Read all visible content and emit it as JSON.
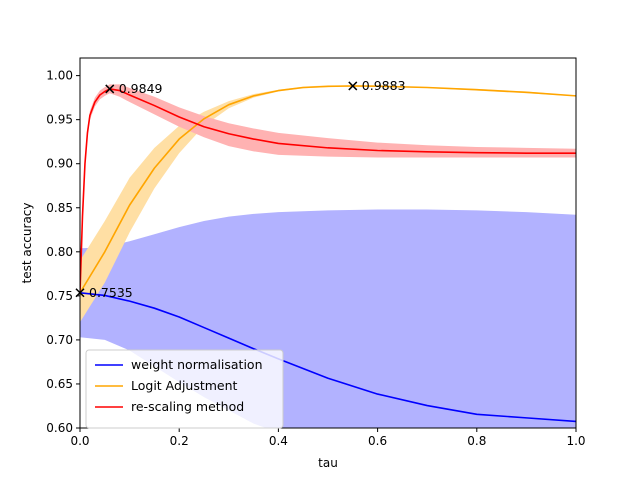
{
  "chart_data": {
    "type": "line",
    "title": "",
    "xlabel": "tau",
    "ylabel": "test accuracy",
    "xlim": [
      0,
      1
    ],
    "ylim": [
      0.6,
      1.02
    ],
    "grid": false,
    "legend_position": "lower-left",
    "x_ticks": [
      "0.0",
      "0.2",
      "0.4",
      "0.6",
      "0.8",
      "1.0"
    ],
    "y_ticks": [
      "0.60",
      "0.65",
      "0.70",
      "0.75",
      "0.80",
      "0.85",
      "0.90",
      "0.95",
      "1.00"
    ],
    "series": [
      {
        "name": "weight normalisation",
        "color": "#0000ff",
        "band_color": "#b2b2ff",
        "x": [
          0.0,
          0.05,
          0.1,
          0.15,
          0.2,
          0.25,
          0.3,
          0.35,
          0.4,
          0.5,
          0.6,
          0.7,
          0.8,
          0.9,
          1.0
        ],
        "y": [
          0.7535,
          0.7505,
          0.744,
          0.736,
          0.726,
          0.714,
          0.702,
          0.69,
          0.6785,
          0.6565,
          0.6385,
          0.6255,
          0.6155,
          0.6115,
          0.6075
        ],
        "lower": [
          0.703,
          0.7,
          0.688,
          0.67,
          0.652,
          0.635,
          0.62,
          0.605,
          0.595,
          0.595,
          0.595,
          0.595,
          0.595,
          0.595,
          0.595
        ],
        "upper": [
          0.804,
          0.805,
          0.812,
          0.82,
          0.828,
          0.835,
          0.84,
          0.843,
          0.845,
          0.847,
          0.848,
          0.848,
          0.847,
          0.845,
          0.842
        ]
      },
      {
        "name": "Logit Adjustment",
        "color": "#ffa500",
        "band_color": "#ffdfa4",
        "x": [
          0.0,
          0.05,
          0.1,
          0.15,
          0.2,
          0.25,
          0.3,
          0.35,
          0.4,
          0.45,
          0.5,
          0.55,
          0.6,
          0.7,
          0.8,
          0.9,
          1.0
        ],
        "y": [
          0.7535,
          0.8,
          0.853,
          0.895,
          0.928,
          0.951,
          0.967,
          0.977,
          0.983,
          0.9865,
          0.9878,
          0.9883,
          0.988,
          0.9865,
          0.984,
          0.981,
          0.977
        ],
        "lower": [
          0.72,
          0.765,
          0.822,
          0.872,
          0.912,
          0.943,
          0.963,
          0.975,
          0.982,
          0.9855,
          0.987,
          0.988,
          0.9875,
          0.986,
          0.983,
          0.98,
          0.9765
        ],
        "upper": [
          0.79,
          0.835,
          0.884,
          0.918,
          0.943,
          0.959,
          0.971,
          0.979,
          0.984,
          0.9875,
          0.989,
          0.9888,
          0.9885,
          0.987,
          0.985,
          0.982,
          0.9775
        ]
      },
      {
        "name": "re-scaling method",
        "color": "#ff0000",
        "band_color": "#ffb2b2",
        "x": [
          0.0,
          0.005,
          0.01,
          0.015,
          0.02,
          0.03,
          0.04,
          0.05,
          0.06,
          0.08,
          0.1,
          0.15,
          0.2,
          0.25,
          0.3,
          0.35,
          0.4,
          0.5,
          0.6,
          0.7,
          0.8,
          0.9,
          1.0
        ],
        "y": [
          0.7535,
          0.84,
          0.9,
          0.935,
          0.955,
          0.97,
          0.978,
          0.982,
          0.9849,
          0.983,
          0.978,
          0.966,
          0.953,
          0.942,
          0.934,
          0.928,
          0.923,
          0.918,
          0.915,
          0.9135,
          0.9125,
          0.912,
          0.912
        ],
        "lower": [
          0.7535,
          0.835,
          0.895,
          0.93,
          0.95,
          0.965,
          0.973,
          0.977,
          0.98,
          0.976,
          0.97,
          0.956,
          0.942,
          0.93,
          0.92,
          0.914,
          0.91,
          0.908,
          0.907,
          0.907,
          0.907,
          0.907,
          0.907
        ],
        "upper": [
          0.7535,
          0.845,
          0.905,
          0.94,
          0.96,
          0.975,
          0.983,
          0.987,
          0.99,
          0.99,
          0.986,
          0.976,
          0.964,
          0.954,
          0.946,
          0.94,
          0.935,
          0.929,
          0.924,
          0.921,
          0.919,
          0.918,
          0.917
        ]
      }
    ],
    "annotations": [
      {
        "x": 0.0,
        "y": 0.7535,
        "text": "0.7535"
      },
      {
        "x": 0.06,
        "y": 0.9849,
        "text": "0.9849"
      },
      {
        "x": 0.55,
        "y": 0.9883,
        "text": "0.9883"
      }
    ]
  }
}
